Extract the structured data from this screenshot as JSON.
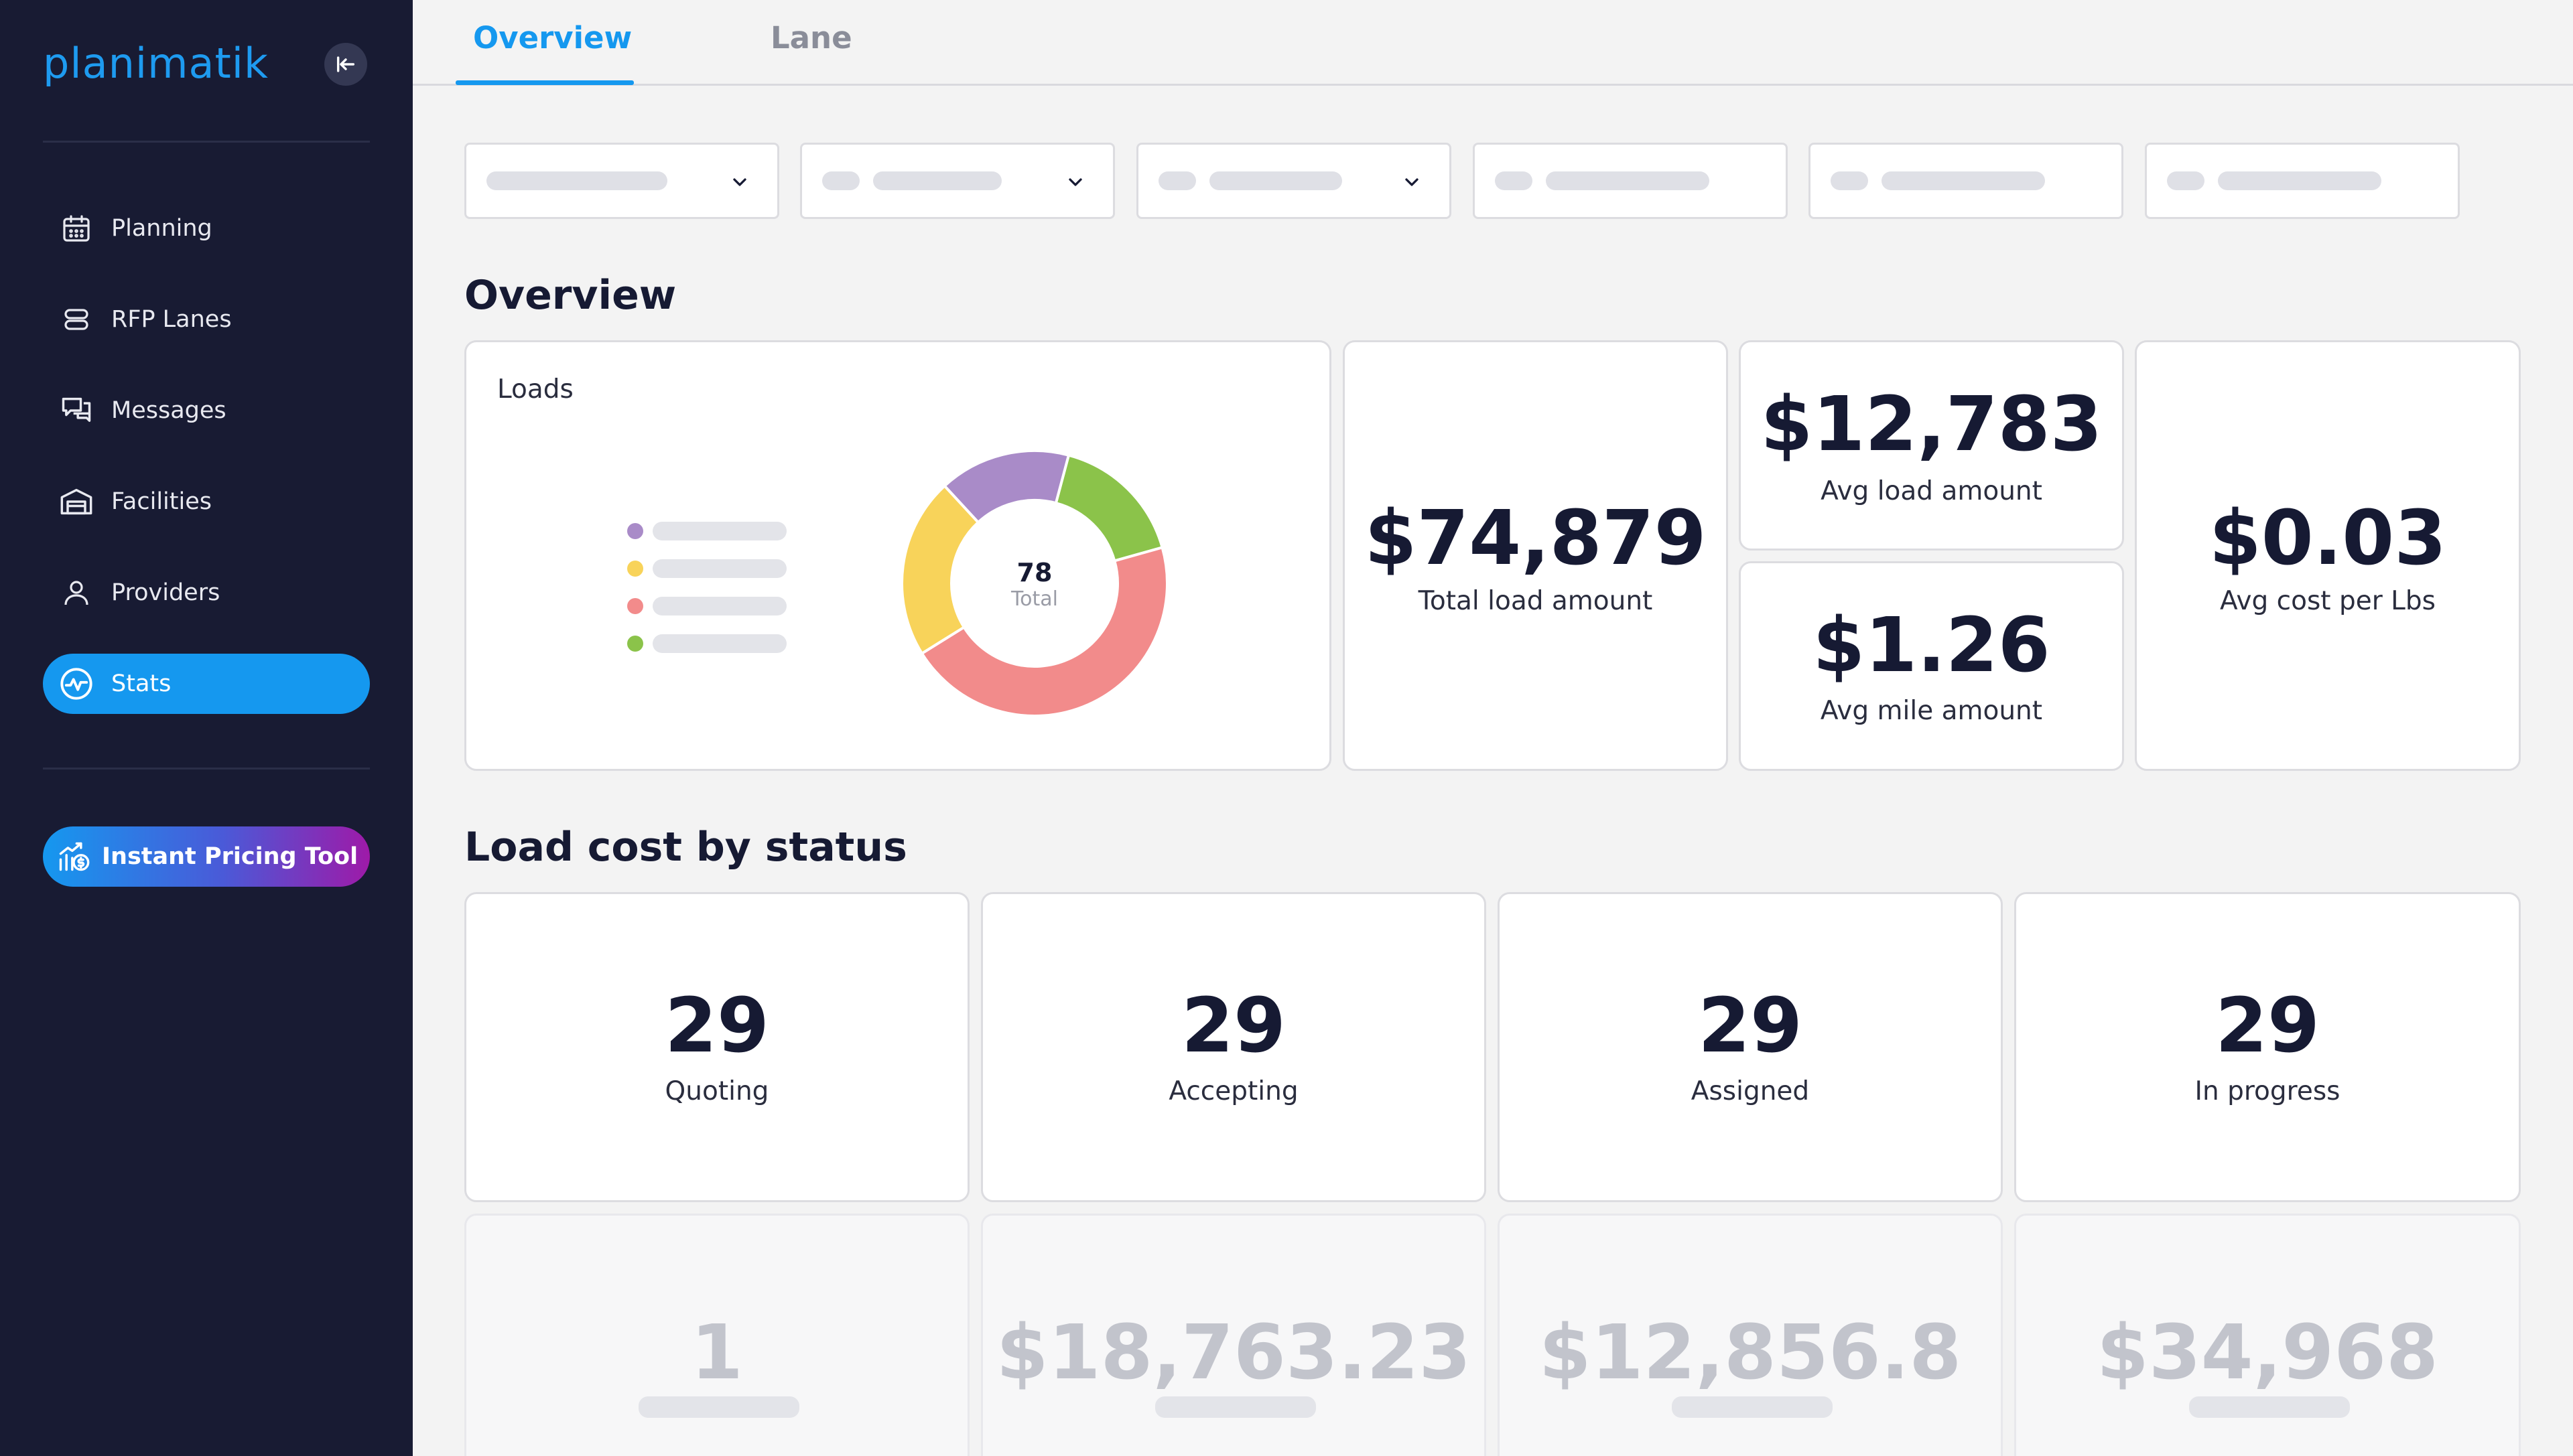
{
  "app": {
    "logo_text": "planimatik"
  },
  "sidebar": {
    "items": [
      {
        "label": "Planning",
        "icon": "calendar-icon"
      },
      {
        "label": "RFP Lanes",
        "icon": "stack-icon"
      },
      {
        "label": "Messages",
        "icon": "chat-icon"
      },
      {
        "label": "Facilities",
        "icon": "warehouse-icon"
      },
      {
        "label": "Providers",
        "icon": "user-icon"
      },
      {
        "label": "Stats",
        "icon": "activity-icon",
        "active": true
      }
    ],
    "cta": {
      "label": "Instant Pricing Tool",
      "icon": "chart-dollar-icon"
    }
  },
  "tabs": [
    {
      "label": "Overview",
      "active": true
    },
    {
      "label": "Lane",
      "active": false
    }
  ],
  "overview": {
    "title": "Overview",
    "loads": {
      "title": "Loads",
      "total_value": "78",
      "total_label": "Total",
      "segments": [
        {
          "color": "#8bc34a",
          "fraction": 0.165
        },
        {
          "color": "#f28b8b",
          "fraction": 0.455
        },
        {
          "color": "#f8d35a",
          "fraction": 0.22
        },
        {
          "color": "#a98bc8",
          "fraction": 0.16
        }
      ],
      "legend_colors": [
        "#a98bc8",
        "#f8d35a",
        "#f28b8b",
        "#8bc34a"
      ]
    },
    "total_load": {
      "value": "$74,879",
      "label": "Total load amount"
    },
    "avg_load": {
      "value": "$12,783",
      "label": "Avg load amount"
    },
    "avg_mile": {
      "value": "$1.26",
      "label": "Avg mile amount"
    },
    "avg_cost_lbs": {
      "value": "$0.03",
      "label": "Avg cost per Lbs"
    }
  },
  "load_cost": {
    "title": "Load cost by status",
    "statuses": [
      {
        "value": "29",
        "label": "Quoting"
      },
      {
        "value": "29",
        "label": "Accepting"
      },
      {
        "value": "29",
        "label": "Assigned"
      },
      {
        "value": "29",
        "label": "In progress"
      }
    ],
    "faded": [
      {
        "value": "1"
      },
      {
        "value": "$18,763.23"
      },
      {
        "value": "$12,856.8"
      },
      {
        "value": "$34,968"
      }
    ]
  },
  "colors": {
    "accent": "#1598ef",
    "sidebar_bg": "#181b33",
    "text": "#161a33"
  }
}
